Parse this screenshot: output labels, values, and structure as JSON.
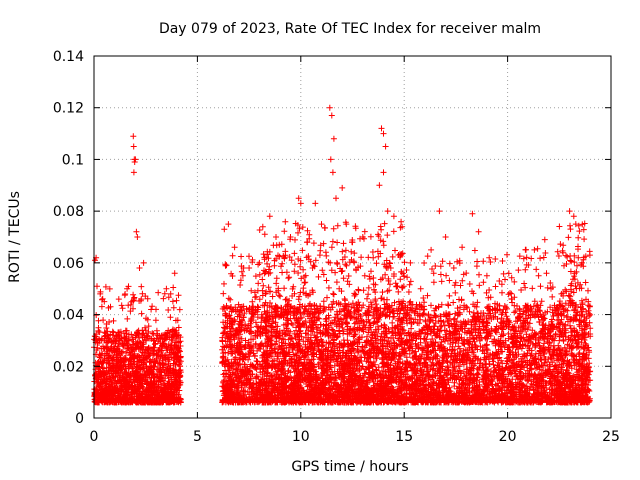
{
  "chart_data": {
    "type": "scatter",
    "title": "Day 079 of 2023, Rate Of TEC Index for receiver malm",
    "xlabel": "GPS time / hours",
    "ylabel": "ROTI / TECUs",
    "xlim": [
      0,
      25
    ],
    "ylim": [
      0,
      0.14
    ],
    "xticks": [
      0,
      5,
      10,
      15,
      20,
      25
    ],
    "xtick_labels": [
      "0",
      "5",
      "10",
      "15",
      "20",
      "25"
    ],
    "yticks": [
      0,
      0.02,
      0.04,
      0.06,
      0.08,
      0.1,
      0.12,
      0.14
    ],
    "ytick_labels": [
      "0",
      "0.02",
      "0.04",
      "0.06",
      "0.08",
      "0.1",
      "0.12",
      "0.14"
    ],
    "grid": true,
    "legend": "none",
    "marker": "+",
    "series": [
      {
        "color": "#ff0000",
        "description_points": "dense scatter, typical ROTI 0.005-0.045 TECU/min between 0-4.2 h and 6.2-24 h, gap 4.2-6.2 h",
        "points": [
          [
            0.05,
            0.061
          ],
          [
            0.1,
            0.062
          ],
          [
            0.3,
            0.048
          ],
          [
            0.5,
            0.045
          ],
          [
            0.8,
            0.043
          ],
          [
            1.2,
            0.046
          ],
          [
            1.6,
            0.05
          ],
          [
            1.9,
            0.109
          ],
          [
            1.92,
            0.105
          ],
          [
            1.95,
            0.1
          ],
          [
            1.97,
            0.099
          ],
          [
            2.0,
            0.1
          ],
          [
            1.93,
            0.095
          ],
          [
            2.05,
            0.072
          ],
          [
            2.1,
            0.07
          ],
          [
            2.2,
            0.058
          ],
          [
            2.4,
            0.06
          ],
          [
            2.6,
            0.038
          ],
          [
            3.0,
            0.042
          ],
          [
            3.5,
            0.05
          ],
          [
            3.9,
            0.056
          ],
          [
            4.1,
            0.035
          ],
          [
            6.3,
            0.073
          ],
          [
            6.5,
            0.075
          ],
          [
            6.8,
            0.066
          ],
          [
            7.2,
            0.055
          ],
          [
            7.5,
            0.058
          ],
          [
            8.0,
            0.06
          ],
          [
            8.5,
            0.078
          ],
          [
            8.8,
            0.07
          ],
          [
            9.2,
            0.062
          ],
          [
            9.5,
            0.07
          ],
          [
            9.9,
            0.085
          ],
          [
            10.0,
            0.083
          ],
          [
            10.3,
            0.068
          ],
          [
            10.7,
            0.083
          ],
          [
            11.0,
            0.075
          ],
          [
            11.4,
            0.12
          ],
          [
            11.5,
            0.117
          ],
          [
            11.6,
            0.108
          ],
          [
            11.45,
            0.1
          ],
          [
            11.55,
            0.095
          ],
          [
            11.7,
            0.085
          ],
          [
            12.0,
            0.089
          ],
          [
            12.2,
            0.075
          ],
          [
            12.5,
            0.068
          ],
          [
            13.0,
            0.07
          ],
          [
            13.5,
            0.062
          ],
          [
            13.8,
            0.09
          ],
          [
            13.9,
            0.112
          ],
          [
            14.0,
            0.11
          ],
          [
            14.1,
            0.105
          ],
          [
            14.0,
            0.095
          ],
          [
            14.2,
            0.08
          ],
          [
            14.5,
            0.078
          ],
          [
            14.9,
            0.074
          ],
          [
            15.3,
            0.06
          ],
          [
            15.8,
            0.05
          ],
          [
            16.3,
            0.065
          ],
          [
            16.7,
            0.08
          ],
          [
            17.0,
            0.07
          ],
          [
            17.4,
            0.058
          ],
          [
            17.8,
            0.066
          ],
          [
            18.3,
            0.079
          ],
          [
            18.6,
            0.072
          ],
          [
            19.0,
            0.055
          ],
          [
            19.6,
            0.053
          ],
          [
            20.2,
            0.046
          ],
          [
            20.8,
            0.052
          ],
          [
            21.5,
            0.055
          ],
          [
            21.8,
            0.069
          ],
          [
            22.1,
            0.05
          ],
          [
            22.6,
            0.048
          ],
          [
            23.0,
            0.08
          ],
          [
            23.2,
            0.078
          ],
          [
            23.3,
            0.075
          ],
          [
            23.6,
            0.06
          ],
          [
            23.9,
            0.045
          ]
        ]
      }
    ]
  }
}
